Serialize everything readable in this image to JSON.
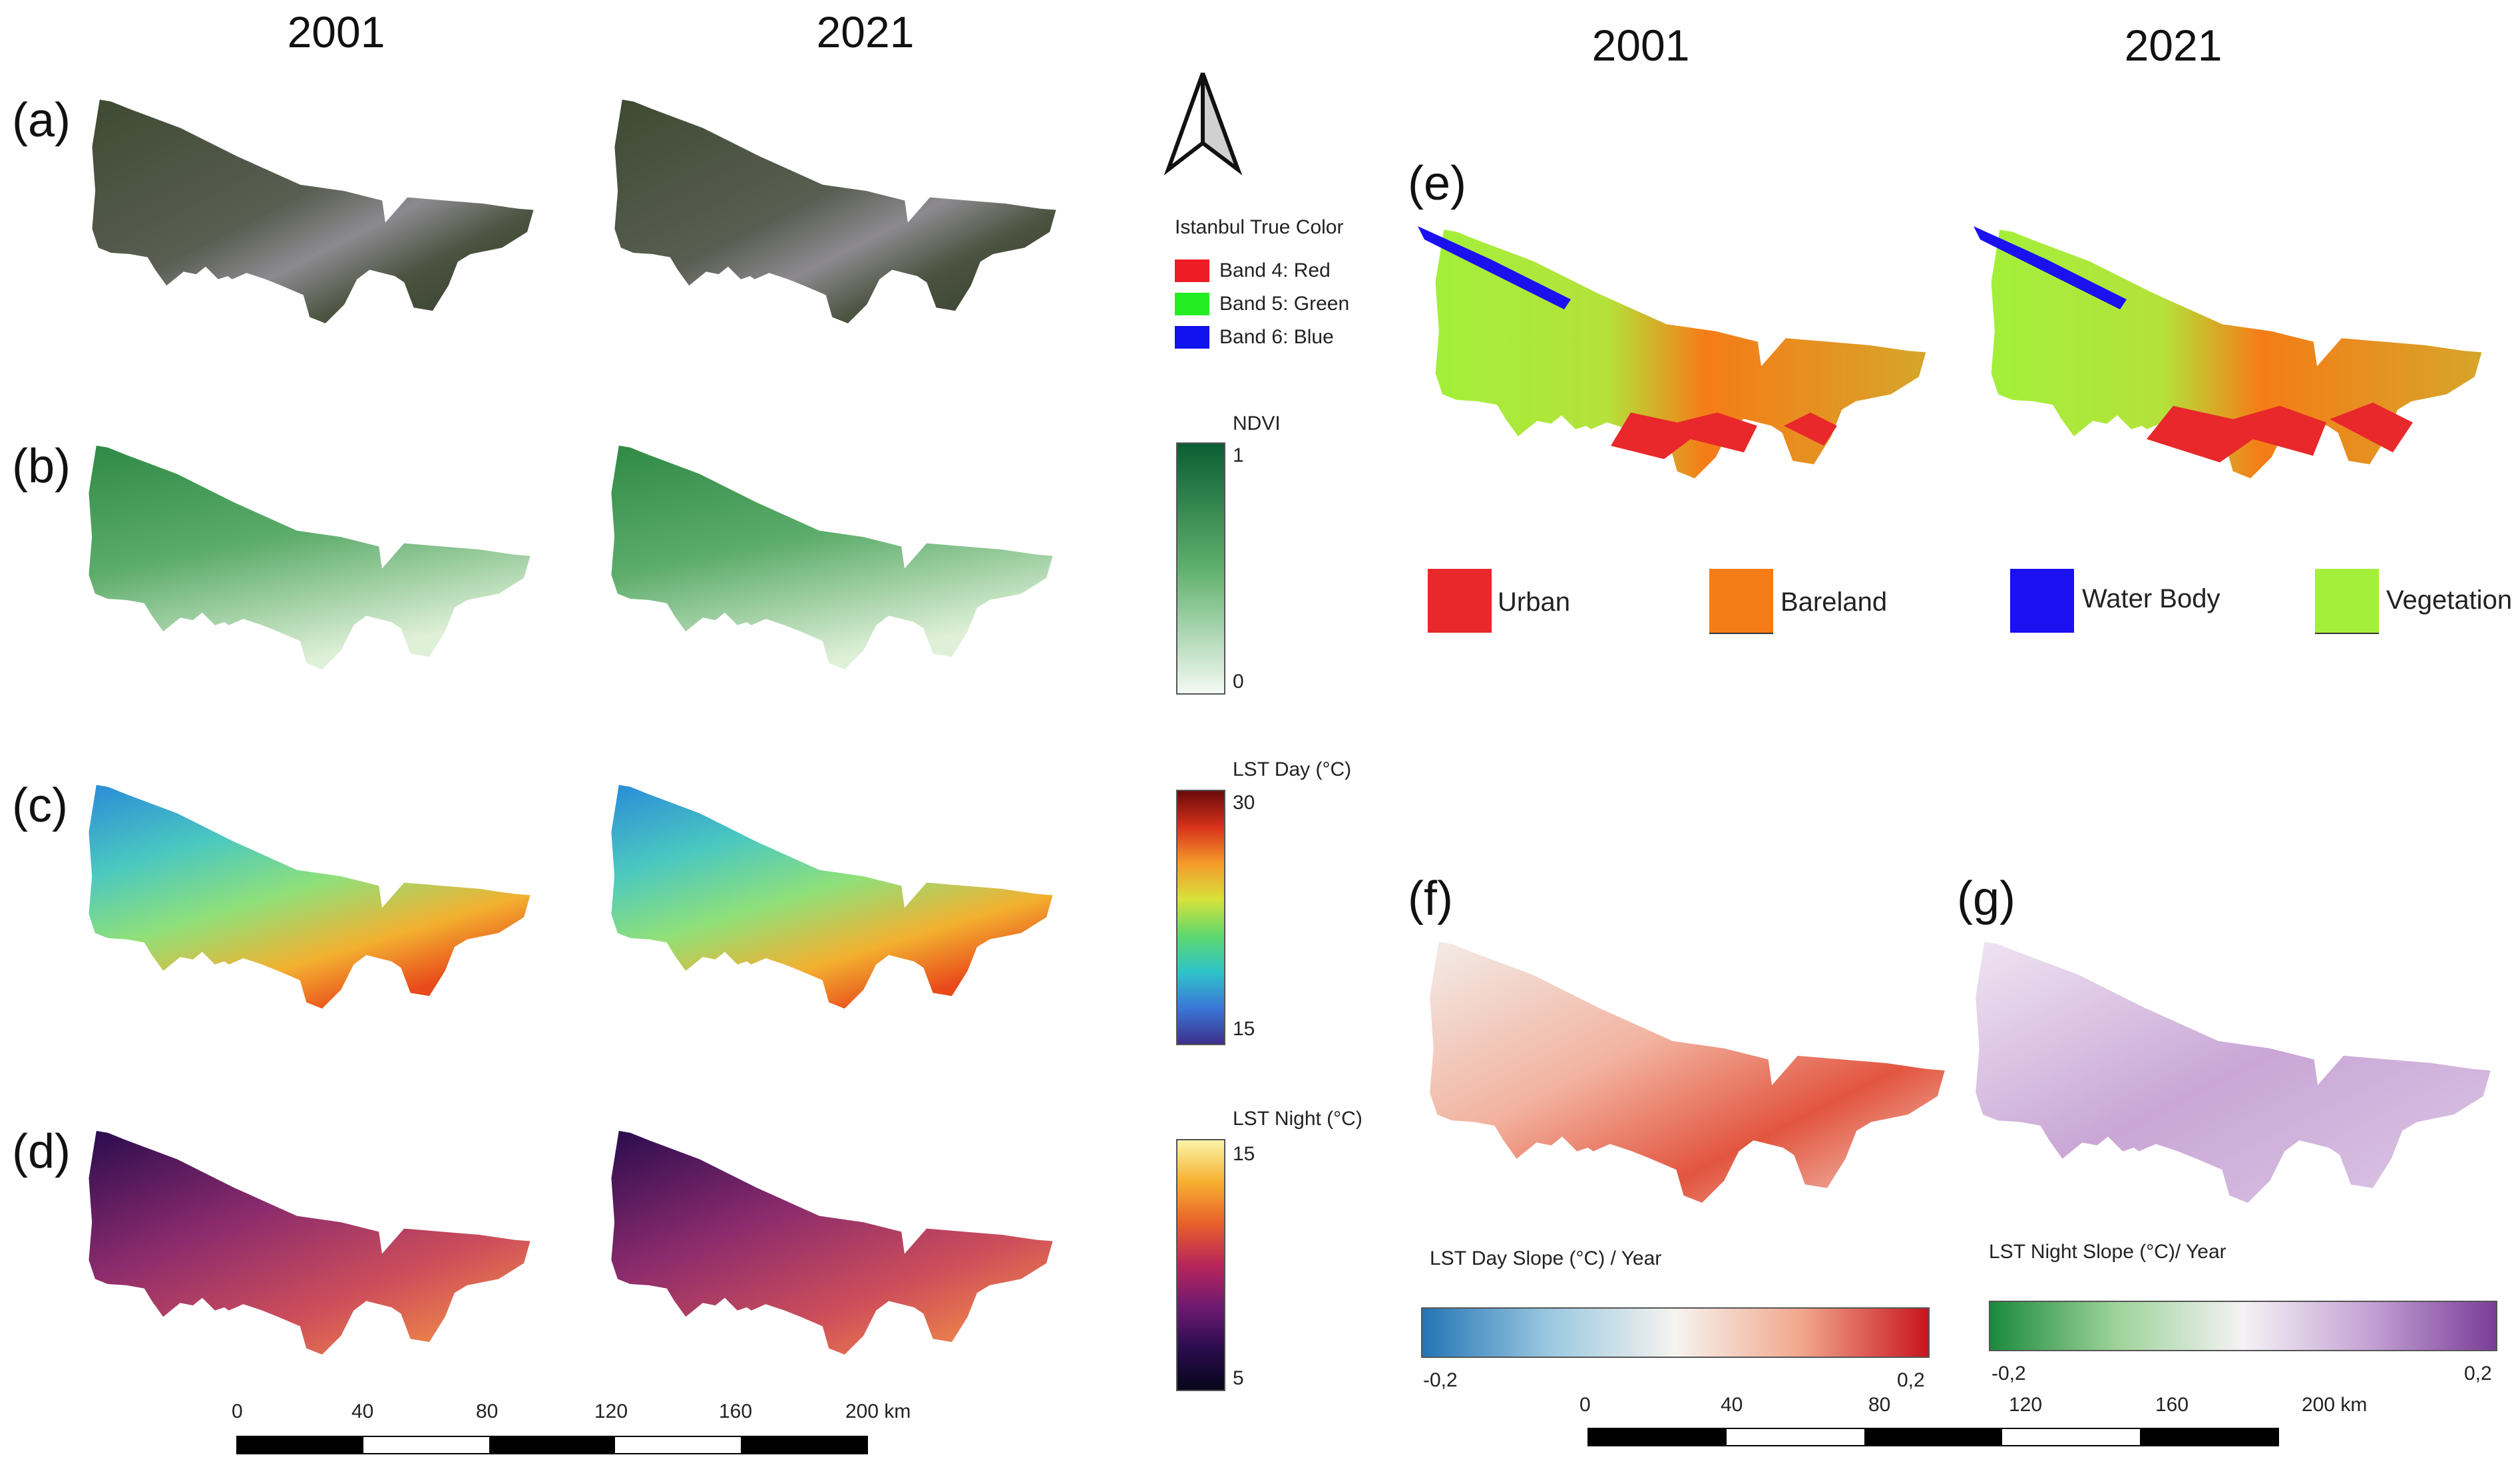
{
  "years_left": [
    "2001",
    "2021"
  ],
  "years_right": [
    "2001",
    "2021"
  ],
  "panel_labels": [
    "(a)",
    "(b)",
    "(c)",
    "(d)",
    "(e)",
    "(f)",
    "(g)"
  ],
  "true_color_legend": {
    "title": "Istanbul True Color",
    "bands": [
      {
        "label": "Band 4: Red",
        "color": "#ee1c25"
      },
      {
        "label": "Band 5: Green",
        "color": "#22ee22"
      },
      {
        "label": "Band 6: Blue",
        "color": "#1111ee"
      }
    ]
  },
  "ndvi_legend": {
    "title": "NDVI",
    "max": "1",
    "min": "0",
    "colors": [
      "#0b5e34",
      "#f4faf4"
    ]
  },
  "lst_day_legend": {
    "title": "LST Day (°C)",
    "max": "30",
    "min": "15"
  },
  "lst_night_legend": {
    "title": "LST Night (°C)",
    "max": "15",
    "min": "5"
  },
  "landcover_legend": [
    {
      "label": "Urban",
      "color": "#e8282a"
    },
    {
      "label": "Bareland",
      "color": "#f57c17"
    },
    {
      "label": "Water Body",
      "color": "#1a10f0"
    },
    {
      "label": "Vegetation",
      "color": "#a3ef3a"
    }
  ],
  "slope_day_legend": {
    "title": "LST Day Slope (°C) / Year",
    "min": "-0,2",
    "max": "0,2"
  },
  "slope_night_legend": {
    "title": "LST Night Slope (°C)/ Year",
    "min": "-0,2",
    "max": "0,2"
  },
  "scale_left": {
    "ticks": [
      "0",
      "40",
      "80",
      "120",
      "160",
      "200 km"
    ]
  },
  "scale_right": {
    "ticks": [
      "0",
      "40",
      "80",
      "120",
      "160",
      "200 km"
    ]
  },
  "colors": {
    "satellite_dark": "#3e4a32",
    "satellite_light": "#8c8a90",
    "ndvi_dark": "#2f8a45",
    "ndvi_light": "#dff0d8",
    "day_cool": "#2a8cd8",
    "day_mid": "#8fe07a",
    "day_hot": "#e84a1a",
    "night_dark": "#2a0c4e",
    "night_mid": "#8b2b6d",
    "night_hot": "#f08a48",
    "slope_day_warm": "#e2553f",
    "slope_night_purple": "#c9a6d6"
  }
}
